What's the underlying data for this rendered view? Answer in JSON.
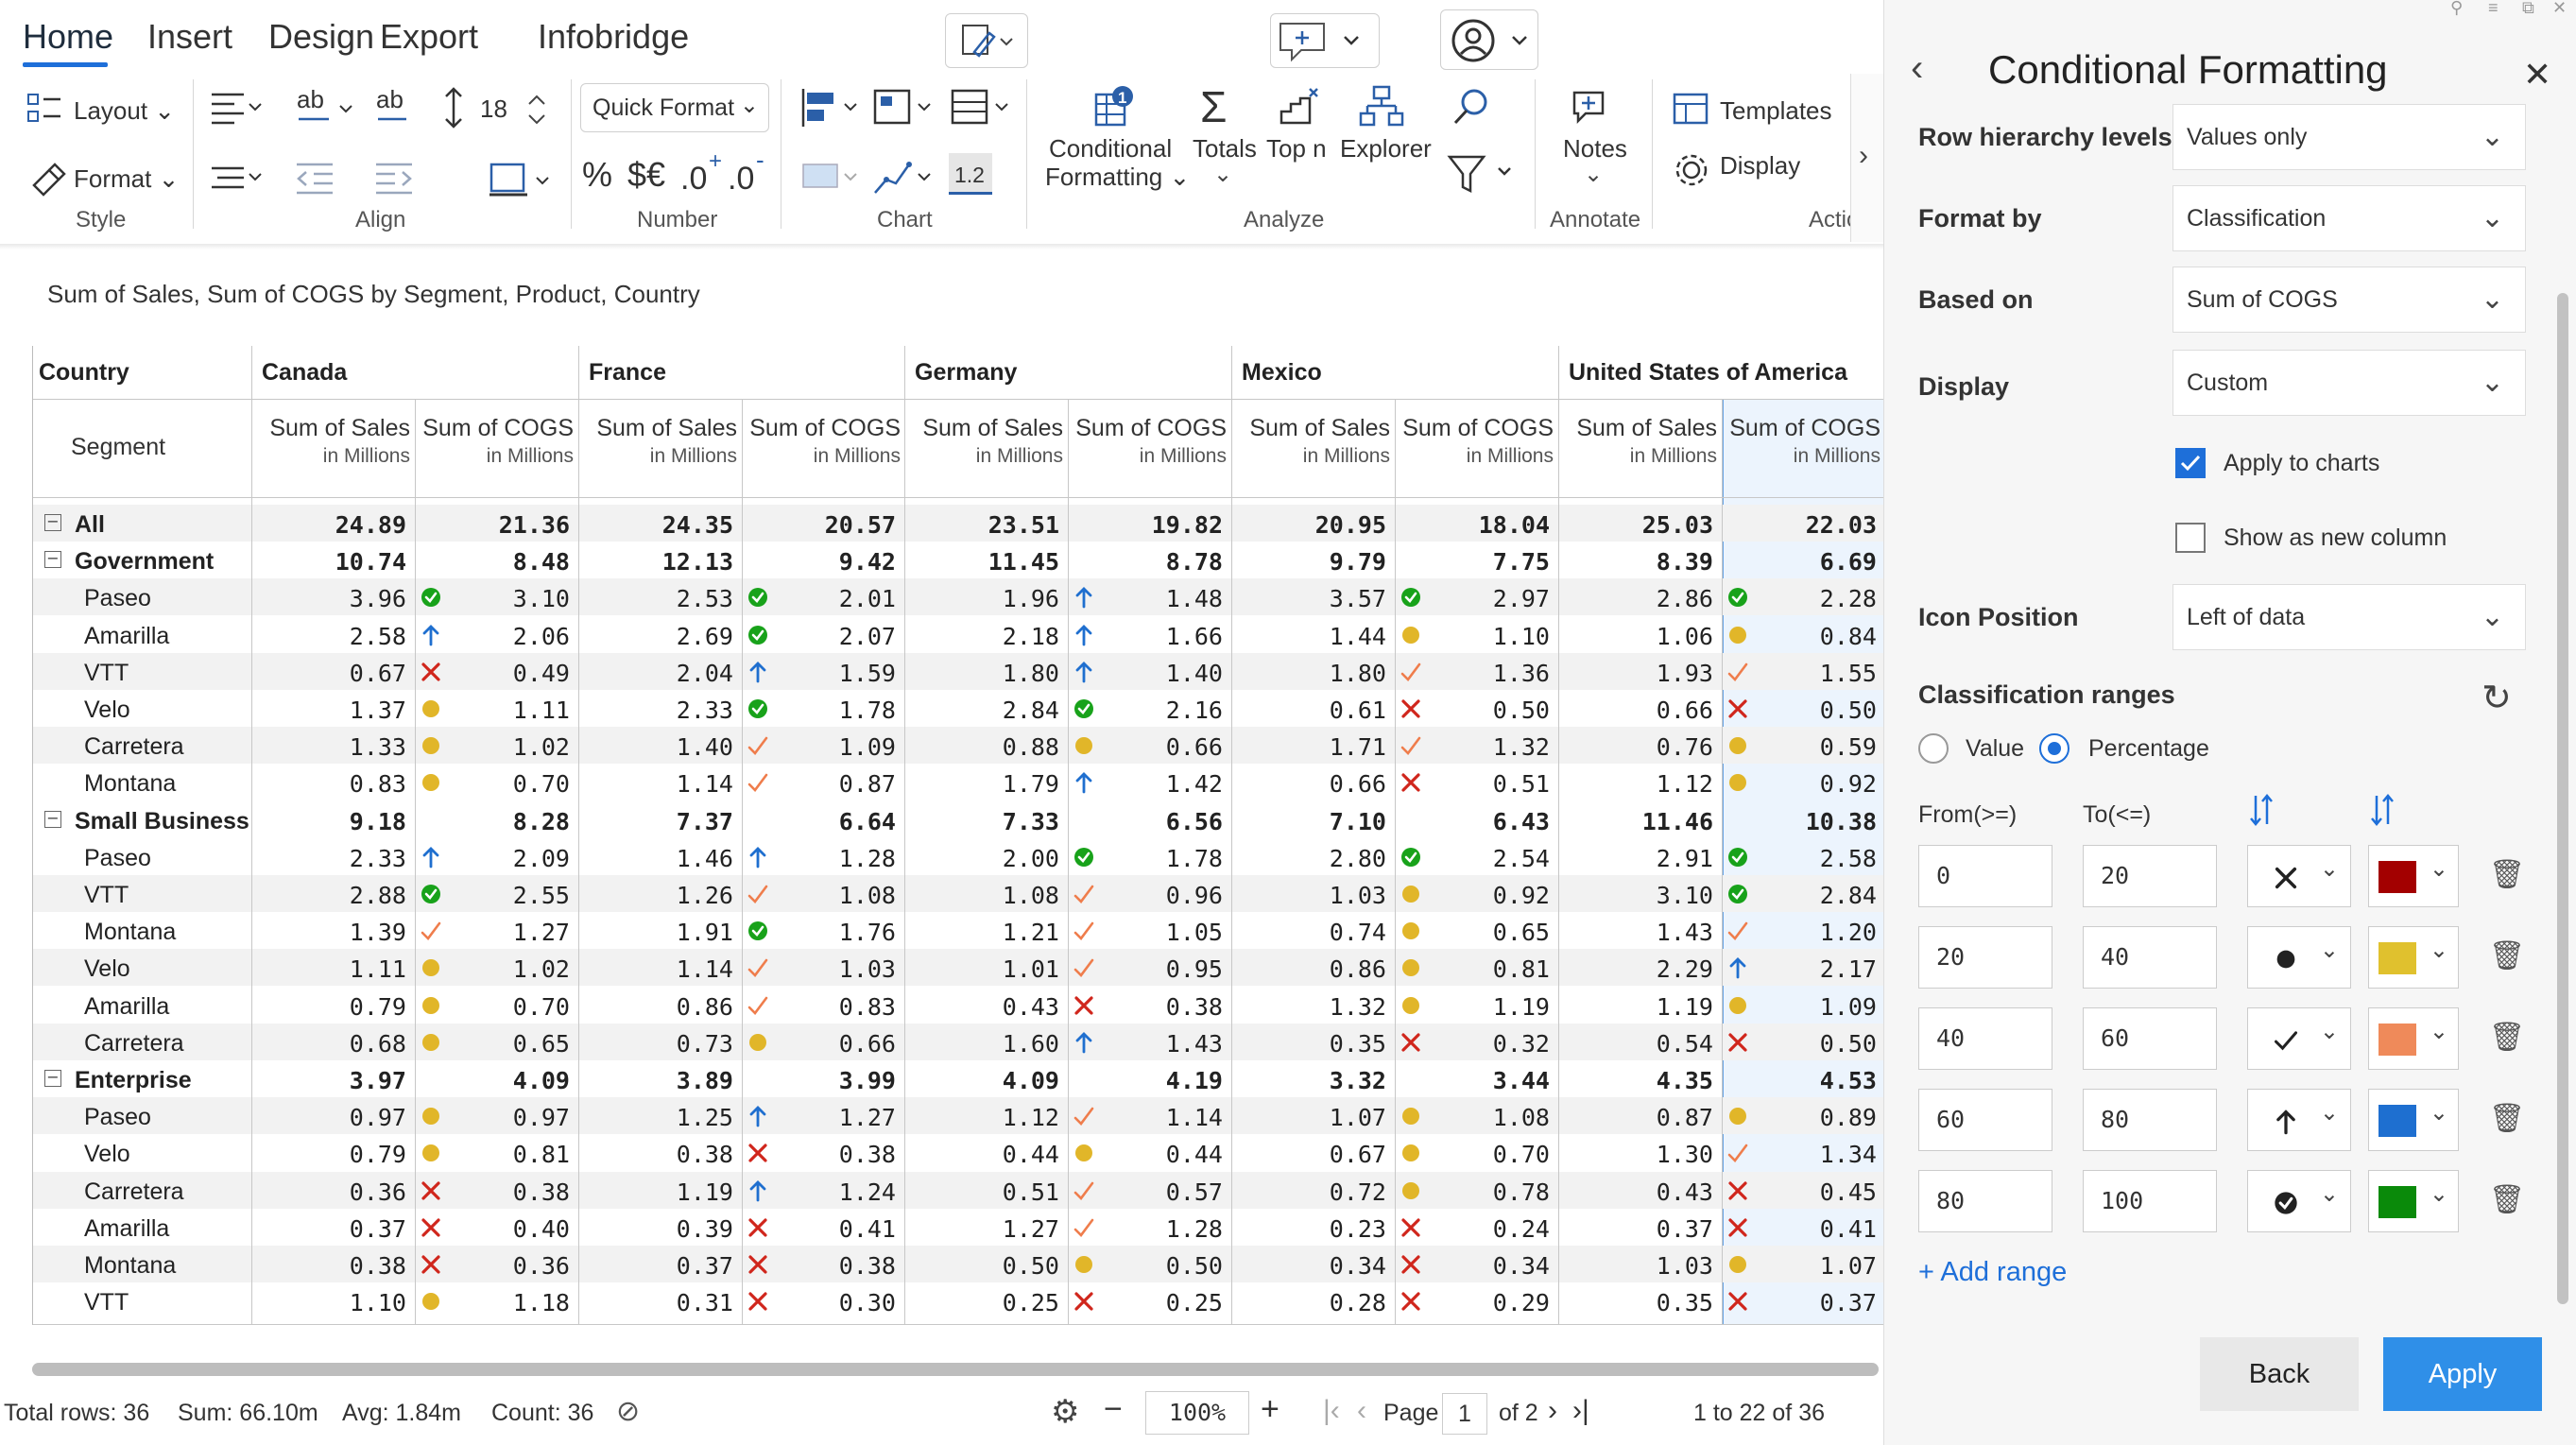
{
  "ribbon": {
    "tabs": [
      "Home",
      "Insert",
      "Design",
      "Export",
      "Infobridge"
    ],
    "layout": "Layout",
    "format": "Format",
    "style_group": "Style",
    "align_group": "Align",
    "font_size": "18",
    "quick_format": "Quick Format",
    "number_group": "Number",
    "decimal_sample": "1.2",
    "chart_group": "Chart",
    "conditional": "Conditional",
    "formatting": "Formatting",
    "totals": "Totals",
    "top_n": "Top n",
    "explorer": "Explorer",
    "analyze_group": "Analyze",
    "notes": "Notes",
    "annotate_group": "Annotate",
    "templates": "Templates",
    "display": "Display",
    "actions_group": "Actio"
  },
  "subtitle": "Sum of Sales, Sum of COGS by Segment, Product, Country",
  "grid": {
    "country_header": "Country",
    "segment_header": "Segment",
    "countries": [
      "Canada",
      "France",
      "Germany",
      "Mexico",
      "United States of America"
    ],
    "measures": [
      "Sum of Sales",
      "Sum of COGS"
    ],
    "unit": "in Millions",
    "rows": [
      {
        "label": "All",
        "bold": true,
        "toggle": true,
        "indent": 0,
        "v": [
          "24.89",
          "21.36",
          "24.35",
          "20.57",
          "23.51",
          "19.82",
          "20.95",
          "18.04",
          "25.03",
          "22.03"
        ],
        "icons": [
          "",
          "",
          "",
          "",
          ""
        ]
      },
      {
        "label": "Government",
        "bold": true,
        "toggle": true,
        "indent": 0,
        "v": [
          "10.74",
          "8.48",
          "12.13",
          "9.42",
          "11.45",
          "8.78",
          "9.79",
          "7.75",
          "8.39",
          "6.69"
        ],
        "icons": [
          "",
          "",
          "",
          "",
          ""
        ]
      },
      {
        "label": "Paseo",
        "v": [
          "3.96",
          "3.10",
          "2.53",
          "2.01",
          "1.96",
          "1.48",
          "3.57",
          "2.97",
          "2.86",
          "2.28"
        ],
        "icons": [
          "ok",
          "ok",
          "up",
          "ok",
          "ok"
        ]
      },
      {
        "label": "Amarilla",
        "v": [
          "2.58",
          "2.06",
          "2.69",
          "2.07",
          "2.18",
          "1.66",
          "1.44",
          "1.10",
          "1.06",
          "0.84"
        ],
        "icons": [
          "up",
          "ok",
          "up",
          "dot",
          "dot"
        ]
      },
      {
        "label": "VTT",
        "v": [
          "0.67",
          "0.49",
          "2.04",
          "1.59",
          "1.80",
          "1.40",
          "1.80",
          "1.36",
          "1.93",
          "1.55"
        ],
        "icons": [
          "x",
          "up",
          "up",
          "chk",
          "chk"
        ]
      },
      {
        "label": "Velo",
        "v": [
          "1.37",
          "1.11",
          "2.33",
          "1.78",
          "2.84",
          "2.16",
          "0.61",
          "0.50",
          "0.66",
          "0.50"
        ],
        "icons": [
          "dot",
          "ok",
          "ok",
          "x",
          "x"
        ]
      },
      {
        "label": "Carretera",
        "v": [
          "1.33",
          "1.02",
          "1.40",
          "1.09",
          "0.88",
          "0.66",
          "1.71",
          "1.32",
          "0.76",
          "0.59"
        ],
        "icons": [
          "dot",
          "chk",
          "dot",
          "chk",
          "dot"
        ]
      },
      {
        "label": "Montana",
        "v": [
          "0.83",
          "0.70",
          "1.14",
          "0.87",
          "1.79",
          "1.42",
          "0.66",
          "0.51",
          "1.12",
          "0.92"
        ],
        "icons": [
          "dot",
          "chk",
          "up",
          "x",
          "dot"
        ]
      },
      {
        "label": "Small Business",
        "bold": true,
        "toggle": true,
        "v": [
          "9.18",
          "8.28",
          "7.37",
          "6.64",
          "7.33",
          "6.56",
          "7.10",
          "6.43",
          "11.46",
          "10.38"
        ],
        "icons": [
          "",
          "",
          "",
          "",
          ""
        ]
      },
      {
        "label": "Paseo",
        "v": [
          "2.33",
          "2.09",
          "1.46",
          "1.28",
          "2.00",
          "1.78",
          "2.80",
          "2.54",
          "2.91",
          "2.58"
        ],
        "icons": [
          "up",
          "up",
          "ok",
          "ok",
          "ok"
        ]
      },
      {
        "label": "VTT",
        "v": [
          "2.88",
          "2.55",
          "1.26",
          "1.08",
          "1.08",
          "0.96",
          "1.03",
          "0.92",
          "3.10",
          "2.84"
        ],
        "icons": [
          "ok",
          "chk",
          "chk",
          "dot",
          "ok"
        ]
      },
      {
        "label": "Montana",
        "v": [
          "1.39",
          "1.27",
          "1.91",
          "1.76",
          "1.21",
          "1.05",
          "0.74",
          "0.65",
          "1.43",
          "1.20"
        ],
        "icons": [
          "chk",
          "ok",
          "chk",
          "dot",
          "chk"
        ]
      },
      {
        "label": "Velo",
        "v": [
          "1.11",
          "1.02",
          "1.14",
          "1.03",
          "1.01",
          "0.95",
          "0.86",
          "0.81",
          "2.29",
          "2.17"
        ],
        "icons": [
          "dot",
          "chk",
          "chk",
          "dot",
          "up"
        ]
      },
      {
        "label": "Amarilla",
        "v": [
          "0.79",
          "0.70",
          "0.86",
          "0.83",
          "0.43",
          "0.38",
          "1.32",
          "1.19",
          "1.19",
          "1.09"
        ],
        "icons": [
          "dot",
          "chk",
          "x",
          "dot",
          "dot"
        ]
      },
      {
        "label": "Carretera",
        "v": [
          "0.68",
          "0.65",
          "0.73",
          "0.66",
          "1.60",
          "1.43",
          "0.35",
          "0.32",
          "0.54",
          "0.50"
        ],
        "icons": [
          "dot",
          "dot",
          "up",
          "x",
          "x"
        ]
      },
      {
        "label": "Enterprise",
        "bold": true,
        "toggle": true,
        "v": [
          "3.97",
          "4.09",
          "3.89",
          "3.99",
          "4.09",
          "4.19",
          "3.32",
          "3.44",
          "4.35",
          "4.53"
        ],
        "icons": [
          "",
          "",
          "",
          "",
          ""
        ]
      },
      {
        "label": "Paseo",
        "v": [
          "0.97",
          "0.97",
          "1.25",
          "1.27",
          "1.12",
          "1.14",
          "1.07",
          "1.08",
          "0.87",
          "0.89"
        ],
        "icons": [
          "dot",
          "up",
          "chk",
          "dot",
          "dot"
        ]
      },
      {
        "label": "Velo",
        "v": [
          "0.79",
          "0.81",
          "0.38",
          "0.38",
          "0.44",
          "0.44",
          "0.67",
          "0.70",
          "1.30",
          "1.34"
        ],
        "icons": [
          "dot",
          "x",
          "dot",
          "dot",
          "chk"
        ]
      },
      {
        "label": "Carretera",
        "v": [
          "0.36",
          "0.38",
          "1.19",
          "1.24",
          "0.51",
          "0.57",
          "0.72",
          "0.78",
          "0.43",
          "0.45"
        ],
        "icons": [
          "x",
          "up",
          "chk",
          "dot",
          "x"
        ]
      },
      {
        "label": "Amarilla",
        "v": [
          "0.37",
          "0.40",
          "0.39",
          "0.41",
          "1.27",
          "1.28",
          "0.23",
          "0.24",
          "0.37",
          "0.41"
        ],
        "icons": [
          "x",
          "x",
          "chk",
          "x",
          "x"
        ]
      },
      {
        "label": "Montana",
        "v": [
          "0.38",
          "0.36",
          "0.37",
          "0.38",
          "0.50",
          "0.50",
          "0.34",
          "0.34",
          "1.03",
          "1.07"
        ],
        "icons": [
          "x",
          "x",
          "dot",
          "x",
          "dot"
        ]
      },
      {
        "label": "VTT",
        "v": [
          "1.10",
          "1.18",
          "0.31",
          "0.30",
          "0.25",
          "0.25",
          "0.28",
          "0.29",
          "0.35",
          "0.37"
        ],
        "icons": [
          "dot",
          "x",
          "x",
          "x",
          "x"
        ]
      }
    ]
  },
  "status": {
    "total_rows": "Total rows: 36",
    "sum": "Sum: 66.10m",
    "avg": "Avg: 1.84m",
    "count": "Count: 36",
    "zoom": "100%",
    "page_label": "Page",
    "page": "1",
    "of_pages": "of 2",
    "range": "1 to 22 of 36"
  },
  "panel": {
    "title": "Conditional Formatting",
    "row_hierarchy_label": "Row hierarchy levels",
    "row_hierarchy_value": "Values only",
    "format_by_label": "Format by",
    "format_by_value": "Classification",
    "based_on_label": "Based on",
    "based_on_value": "Sum of COGS",
    "display_label": "Display",
    "display_value": "Custom",
    "apply_to_charts": "Apply to charts",
    "show_new_column": "Show as new column",
    "icon_position_label": "Icon Position",
    "icon_position_value": "Left of data",
    "ranges_label": "Classification ranges",
    "value_option": "Value",
    "percentage_option": "Percentage",
    "from_label": "From(>=)",
    "to_label": "To(<=)",
    "ranges": [
      {
        "from": "0",
        "to": "20",
        "icon": "x",
        "color": "#a30000"
      },
      {
        "from": "20",
        "to": "40",
        "icon": "dot",
        "color": "#e0c12e"
      },
      {
        "from": "40",
        "to": "60",
        "icon": "chk",
        "color": "#ef8a5a"
      },
      {
        "from": "60",
        "to": "80",
        "icon": "up",
        "color": "#1e6fd0"
      },
      {
        "from": "80",
        "to": "100",
        "icon": "ok",
        "color": "#0a8a0a"
      }
    ],
    "add_range": "+ Add range",
    "back": "Back",
    "apply": "Apply"
  },
  "colors": {
    "accent": "#1e6fd9",
    "x": "#d0261c",
    "dot": "#e1b629",
    "chk": "#ef7d4c",
    "up": "#1f6fcf",
    "ok": "#18a21a"
  }
}
